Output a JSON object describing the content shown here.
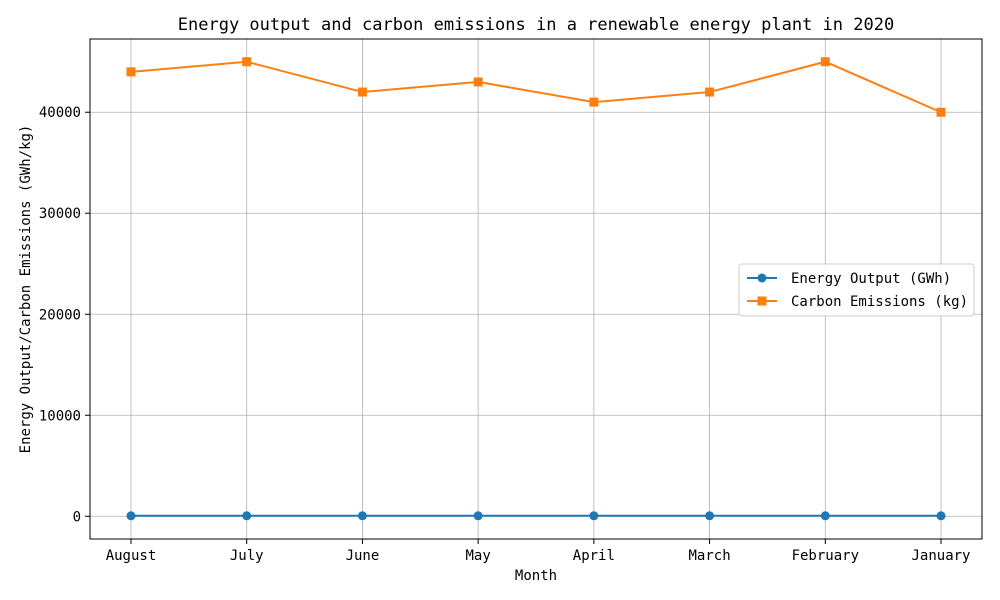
{
  "chart_data": {
    "type": "line",
    "title": "Energy output and carbon emissions in a renewable energy plant in 2020",
    "xlabel": "Month",
    "ylabel": "Energy Output/Carbon Emissions (GWh/kg)",
    "categories": [
      "August",
      "July",
      "June",
      "May",
      "April",
      "March",
      "February",
      "January"
    ],
    "ylim": [
      -2250,
      47250
    ],
    "yticks": [
      0,
      10000,
      20000,
      30000,
      40000
    ],
    "grid": true,
    "legend_position": "center-right",
    "series": [
      {
        "name": "Energy Output (GWh)",
        "marker": "circle",
        "color": "#1f77b4",
        "values": [
          50,
          50,
          50,
          50,
          50,
          50,
          50,
          50
        ]
      },
      {
        "name": "Carbon Emissions (kg)",
        "marker": "square",
        "color": "#ff7f0e",
        "values": [
          44000,
          45000,
          42000,
          43000,
          41000,
          42000,
          45000,
          40000
        ]
      }
    ]
  }
}
